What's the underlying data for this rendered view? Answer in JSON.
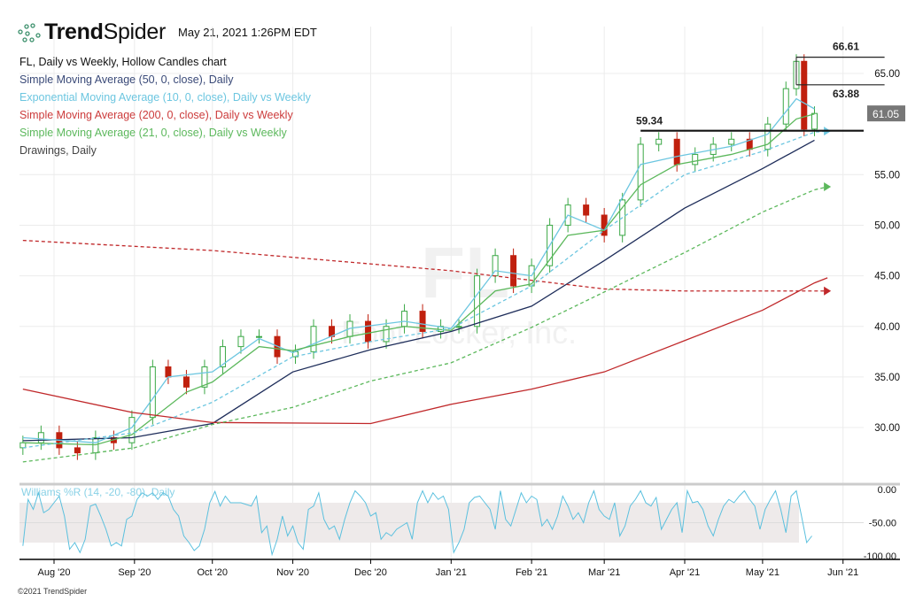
{
  "header": {
    "brand_bold": "Trend",
    "brand_light": "Spider",
    "timestamp": "May 21, 2021 1:26PM EDT"
  },
  "legend": {
    "title": "FL, Daily vs Weekly, Hollow Candles chart",
    "items": [
      {
        "label": "Simple Moving Average (50, 0, close), Daily",
        "color": "#3a4a78"
      },
      {
        "label": "Exponential Moving Average (10, 0, close), Daily vs Weekly",
        "color": "#6cc6e0"
      },
      {
        "label": "Simple Moving Average (200, 0, close), Daily vs Weekly",
        "color": "#cc3b3b"
      },
      {
        "label": "Simple Moving Average (21, 0, close), Daily vs Weekly",
        "color": "#5cb85c"
      },
      {
        "label": "Drawings, Daily",
        "color": "#444444"
      }
    ]
  },
  "watermark": {
    "symbol": "FL",
    "company": "Foot Locker, Inc."
  },
  "footer": {
    "copyright": "©2021 TrendSpider"
  },
  "chart_data": {
    "type": "candlestick",
    "x_unit": "days since Aug 1 2020",
    "price_axis": {
      "ticks": [
        "65.00",
        "55.00",
        "50.00",
        "45.00",
        "40.00",
        "35.00",
        "30.00"
      ],
      "tick_values": [
        65,
        55,
        50,
        45,
        40,
        35,
        30
      ],
      "ylim": [
        26,
        69
      ]
    },
    "x_ticks": [
      {
        "label": "Aug '20",
        "day": 0
      },
      {
        "label": "Sep '20",
        "day": 31
      },
      {
        "label": "Oct '20",
        "day": 61
      },
      {
        "label": "Nov '20",
        "day": 92
      },
      {
        "label": "Dec '20",
        "day": 122
      },
      {
        "label": "Jan '21",
        "day": 153
      },
      {
        "label": "Feb '21",
        "day": 184
      },
      {
        "label": "Mar '21",
        "day": 212
      },
      {
        "label": "Apr '21",
        "day": 243
      },
      {
        "label": "May '21",
        "day": 273
      },
      {
        "label": "Jun '21",
        "day": 304
      }
    ],
    "closes": [
      [
        -12,
        28.5
      ],
      [
        -5,
        29.5
      ],
      [
        2,
        28
      ],
      [
        9,
        27.5
      ],
      [
        16,
        29
      ],
      [
        23,
        28.5
      ],
      [
        30,
        31
      ],
      [
        38,
        36
      ],
      [
        44,
        35
      ],
      [
        51,
        34
      ],
      [
        58,
        36
      ],
      [
        65,
        38
      ],
      [
        72,
        39
      ],
      [
        79,
        39
      ],
      [
        86,
        37
      ],
      [
        93,
        37.5
      ],
      [
        100,
        40
      ],
      [
        107,
        39
      ],
      [
        114,
        40.5
      ],
      [
        121,
        38.5
      ],
      [
        128,
        40
      ],
      [
        135,
        41.5
      ],
      [
        142,
        39.5
      ],
      [
        149,
        40
      ],
      [
        156,
        40
      ],
      [
        163,
        45
      ],
      [
        170,
        47
      ],
      [
        177,
        44
      ],
      [
        184,
        46
      ],
      [
        191,
        50
      ],
      [
        198,
        52
      ],
      [
        205,
        51
      ],
      [
        212,
        49
      ],
      [
        219,
        52.5
      ],
      [
        226,
        58
      ],
      [
        233,
        58.5
      ],
      [
        240,
        56
      ],
      [
        247,
        57
      ],
      [
        254,
        58
      ],
      [
        261,
        58.5
      ],
      [
        268,
        57.5
      ],
      [
        275,
        60
      ],
      [
        282,
        63.5
      ],
      [
        286,
        66.2
      ],
      [
        289,
        59.5
      ],
      [
        293,
        61.05
      ]
    ],
    "series": [
      {
        "name": "SMA 50 Daily",
        "color": "#1e2d5a",
        "dash": false,
        "points": [
          [
            -12,
            28.7
          ],
          [
            30,
            29
          ],
          [
            61,
            30.4
          ],
          [
            92,
            35.5
          ],
          [
            122,
            37.7
          ],
          [
            153,
            39.5
          ],
          [
            184,
            42
          ],
          [
            212,
            46.5
          ],
          [
            243,
            51.7
          ],
          [
            273,
            55.6
          ],
          [
            293,
            58.4
          ]
        ]
      },
      {
        "name": "EMA 10 Daily",
        "color": "#6cc6e0",
        "dash": false,
        "points": [
          [
            -12,
            29
          ],
          [
            16,
            28.5
          ],
          [
            30,
            30
          ],
          [
            44,
            35
          ],
          [
            61,
            35.5
          ],
          [
            79,
            38.8
          ],
          [
            92,
            37.4
          ],
          [
            114,
            39.8
          ],
          [
            135,
            40.5
          ],
          [
            153,
            39.8
          ],
          [
            170,
            45.5
          ],
          [
            184,
            45
          ],
          [
            198,
            51
          ],
          [
            212,
            49.5
          ],
          [
            226,
            56
          ],
          [
            240,
            56.8
          ],
          [
            261,
            57.8
          ],
          [
            275,
            59
          ],
          [
            286,
            62.5
          ],
          [
            293,
            61.5
          ]
        ]
      },
      {
        "name": "SMA 21 Daily",
        "color": "#5cb85c",
        "dash": false,
        "points": [
          [
            -12,
            28.5
          ],
          [
            16,
            28.3
          ],
          [
            30,
            29.3
          ],
          [
            51,
            33.5
          ],
          [
            61,
            34.5
          ],
          [
            79,
            38
          ],
          [
            92,
            37.6
          ],
          [
            114,
            39
          ],
          [
            135,
            40
          ],
          [
            153,
            39.6
          ],
          [
            170,
            43.5
          ],
          [
            184,
            44.2
          ],
          [
            198,
            49
          ],
          [
            212,
            49.5
          ],
          [
            226,
            54
          ],
          [
            240,
            56
          ],
          [
            261,
            57
          ],
          [
            275,
            58
          ],
          [
            286,
            60.5
          ],
          [
            293,
            61
          ]
        ]
      },
      {
        "name": "SMA 200 Weekly",
        "color": "#c0282a",
        "dash": false,
        "points": [
          [
            -12,
            33.8
          ],
          [
            30,
            31.5
          ],
          [
            61,
            30.5
          ],
          [
            122,
            30.4
          ],
          [
            153,
            32.3
          ],
          [
            184,
            33.8
          ],
          [
            212,
            35.5
          ],
          [
            243,
            38.6
          ],
          [
            273,
            41.6
          ],
          [
            293,
            44.3
          ],
          [
            298,
            44.8
          ]
        ]
      },
      {
        "name": "SMA 200 Daily vs Weekly",
        "color": "#c0282a",
        "dash": true,
        "points": [
          [
            -12,
            48.5
          ],
          [
            61,
            47.5
          ],
          [
            153,
            45.5
          ],
          [
            212,
            43.7
          ],
          [
            243,
            43.5
          ],
          [
            298,
            43.5
          ]
        ]
      },
      {
        "name": "SMA 21 Weekly",
        "color": "#5cb85c",
        "dash": true,
        "points": [
          [
            -12,
            26.6
          ],
          [
            31,
            28
          ],
          [
            61,
            30.3
          ],
          [
            92,
            32
          ],
          [
            122,
            34.6
          ],
          [
            153,
            36.4
          ],
          [
            184,
            39.9
          ],
          [
            212,
            43.4
          ],
          [
            243,
            47.3
          ],
          [
            273,
            51.3
          ],
          [
            293,
            53.5
          ],
          [
            298,
            53.8
          ]
        ]
      },
      {
        "name": "EMA 10 Weekly",
        "color": "#6cc6e0",
        "dash": true,
        "points": [
          [
            -12,
            28
          ],
          [
            31,
            29.5
          ],
          [
            61,
            32.5
          ],
          [
            92,
            37
          ],
          [
            122,
            38.5
          ],
          [
            153,
            39.8
          ],
          [
            184,
            44
          ],
          [
            212,
            49.5
          ],
          [
            243,
            55
          ],
          [
            273,
            57.3
          ],
          [
            293,
            59.2
          ],
          [
            298,
            59.3
          ]
        ]
      }
    ],
    "drawings": {
      "levels": [
        {
          "label": "66.61",
          "value": 66.61
        },
        {
          "label": "63.88",
          "value": 63.88
        },
        {
          "label": "59.34",
          "value": 59.34
        }
      ]
    },
    "last_price": {
      "label": "61.05",
      "value": 61.05
    },
    "williams_r": {
      "title": "Williams %R (14, -20, -80), Daily",
      "ticks": [
        "0.00",
        "-50.00",
        "-100.00"
      ],
      "tick_values": [
        0,
        -50,
        -100
      ],
      "band": [
        -20,
        -80
      ],
      "values": [
        [
          -12,
          -85
        ],
        [
          -10,
          -15
        ],
        [
          -8,
          -30
        ],
        [
          -6,
          -5
        ],
        [
          -4,
          -35
        ],
        [
          -2,
          -30
        ],
        [
          0,
          -20
        ],
        [
          2,
          -10
        ],
        [
          4,
          -40
        ],
        [
          6,
          -90
        ],
        [
          8,
          -80
        ],
        [
          10,
          -95
        ],
        [
          12,
          -75
        ],
        [
          14,
          -25
        ],
        [
          16,
          -22
        ],
        [
          18,
          -40
        ],
        [
          20,
          -60
        ],
        [
          22,
          -85
        ],
        [
          24,
          -80
        ],
        [
          26,
          -85
        ],
        [
          28,
          -45
        ],
        [
          30,
          -40
        ],
        [
          32,
          -15
        ],
        [
          34,
          -5
        ],
        [
          36,
          -10
        ],
        [
          38,
          -5
        ],
        [
          40,
          -15
        ],
        [
          42,
          -5
        ],
        [
          44,
          -10
        ],
        [
          46,
          -30
        ],
        [
          48,
          -40
        ],
        [
          50,
          -70
        ],
        [
          52,
          -80
        ],
        [
          54,
          -92
        ],
        [
          56,
          -85
        ],
        [
          58,
          -60
        ],
        [
          60,
          -20
        ],
        [
          62,
          -3
        ],
        [
          64,
          -25
        ],
        [
          66,
          -10
        ],
        [
          68,
          -20
        ],
        [
          72,
          -20
        ],
        [
          76,
          -25
        ],
        [
          78,
          -10
        ],
        [
          80,
          -65
        ],
        [
          82,
          -55
        ],
        [
          84,
          -98
        ],
        [
          86,
          -75
        ],
        [
          88,
          -40
        ],
        [
          90,
          -70
        ],
        [
          92,
          -55
        ],
        [
          94,
          -80
        ],
        [
          96,
          -90
        ],
        [
          98,
          -30
        ],
        [
          100,
          -25
        ],
        [
          102,
          -5
        ],
        [
          104,
          -45
        ],
        [
          106,
          -60
        ],
        [
          108,
          -55
        ],
        [
          110,
          -75
        ],
        [
          112,
          -45
        ],
        [
          114,
          -20
        ],
        [
          116,
          -2
        ],
        [
          118,
          -10
        ],
        [
          120,
          -20
        ],
        [
          122,
          -40
        ],
        [
          124,
          -35
        ],
        [
          126,
          -75
        ],
        [
          128,
          -65
        ],
        [
          130,
          -70
        ],
        [
          132,
          -60
        ],
        [
          134,
          -55
        ],
        [
          136,
          -50
        ],
        [
          138,
          -75
        ],
        [
          140,
          -20
        ],
        [
          142,
          -2
        ],
        [
          144,
          -20
        ],
        [
          146,
          -5
        ],
        [
          148,
          -15
        ],
        [
          150,
          -10
        ],
        [
          152,
          -30
        ],
        [
          154,
          -95
        ],
        [
          156,
          -80
        ],
        [
          158,
          -60
        ],
        [
          160,
          -20
        ],
        [
          162,
          -12
        ],
        [
          164,
          -10
        ],
        [
          166,
          -20
        ],
        [
          168,
          -30
        ],
        [
          170,
          -60
        ],
        [
          172,
          -2
        ],
        [
          174,
          -45
        ],
        [
          176,
          -55
        ],
        [
          178,
          -30
        ],
        [
          180,
          -5
        ],
        [
          182,
          -20
        ],
        [
          184,
          -10
        ],
        [
          186,
          -15
        ],
        [
          188,
          -55
        ],
        [
          190,
          -45
        ],
        [
          192,
          -60
        ],
        [
          194,
          -40
        ],
        [
          196,
          -10
        ],
        [
          198,
          -25
        ],
        [
          200,
          -45
        ],
        [
          202,
          -35
        ],
        [
          204,
          -50
        ],
        [
          206,
          -20
        ],
        [
          208,
          -2
        ],
        [
          210,
          -30
        ],
        [
          212,
          -40
        ],
        [
          214,
          -45
        ],
        [
          216,
          -20
        ],
        [
          218,
          -70
        ],
        [
          220,
          -55
        ],
        [
          222,
          -25
        ],
        [
          224,
          -15
        ],
        [
          226,
          -2
        ],
        [
          228,
          -20
        ],
        [
          230,
          -25
        ],
        [
          232,
          -12
        ],
        [
          234,
          -60
        ],
        [
          236,
          -45
        ],
        [
          238,
          -30
        ],
        [
          240,
          -20
        ],
        [
          242,
          -65
        ],
        [
          244,
          -2
        ],
        [
          246,
          -20
        ],
        [
          248,
          -18
        ],
        [
          250,
          -30
        ],
        [
          252,
          -55
        ],
        [
          254,
          -70
        ],
        [
          256,
          -45
        ],
        [
          258,
          -25
        ],
        [
          260,
          -15
        ],
        [
          262,
          -20
        ],
        [
          264,
          -10
        ],
        [
          266,
          -2
        ],
        [
          268,
          -15
        ],
        [
          270,
          -25
        ],
        [
          272,
          -60
        ],
        [
          274,
          -30
        ],
        [
          276,
          -15
        ],
        [
          278,
          -2
        ],
        [
          280,
          -30
        ],
        [
          282,
          -65
        ],
        [
          284,
          -10
        ],
        [
          286,
          -2
        ],
        [
          288,
          -40
        ],
        [
          290,
          -80
        ],
        [
          292,
          -70
        ]
      ]
    }
  }
}
